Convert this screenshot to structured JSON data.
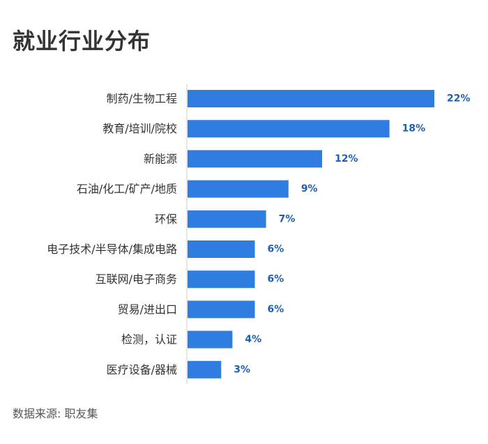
{
  "title": "就业行业分布",
  "source": "数据来源: 职友集",
  "colors": {
    "bar": "#2f7de1",
    "value_label": "#1f5fb0",
    "axis": "#cccccc"
  },
  "chart_data": {
    "type": "bar",
    "orientation": "horizontal",
    "title": "就业行业分布",
    "xlabel": "",
    "ylabel": "",
    "xlim": [
      0,
      22
    ],
    "grid": false,
    "legend": "none",
    "categories": [
      "制药/生物工程",
      "教育/培训/院校",
      "新能源",
      "石油/化工/矿产/地质",
      "环保",
      "电子技术/半导体/集成电路",
      "互联网/电子商务",
      "贸易/进出口",
      "检测，认证",
      "医疗设备/器械"
    ],
    "values": [
      22,
      18,
      12,
      9,
      7,
      6,
      6,
      6,
      4,
      3
    ],
    "value_labels": [
      "22%",
      "18%",
      "12%",
      "9%",
      "7%",
      "6%",
      "6%",
      "6%",
      "4%",
      "3%"
    ]
  }
}
